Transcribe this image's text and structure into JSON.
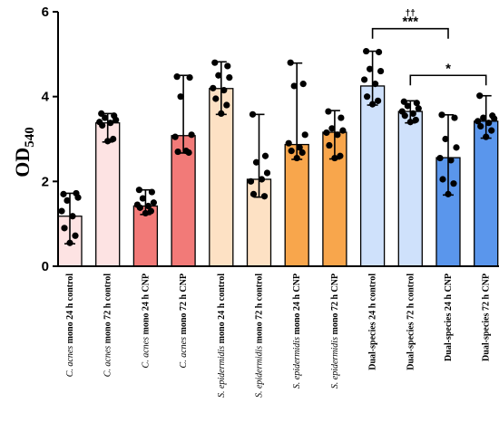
{
  "chart_data": {
    "type": "bar",
    "title": "",
    "xlabel": "",
    "ylabel": "OD",
    "ylabel_subscript": "540",
    "ylim": [
      0,
      6
    ],
    "yticks": [
      0,
      2,
      4,
      6
    ],
    "grid": false,
    "categories": [
      {
        "italic": "C. acnes",
        "rest": "mono 24 h control"
      },
      {
        "italic": "C. acnes",
        "rest": "mono 72  h control"
      },
      {
        "italic": "C. acnes",
        "rest": "mono 24 h CNP"
      },
      {
        "italic": "C. acnes",
        "rest": "mono 72  h CNP"
      },
      {
        "italic": "S. epidermidis",
        "rest": "mono 24 h control"
      },
      {
        "italic": "S. epidermidis",
        "rest": "mono 72 h control"
      },
      {
        "italic": "S. epidermidis",
        "rest": "mono 24 h CNP"
      },
      {
        "italic": "S. epidermidis",
        "rest": "mono 72 h CNP"
      },
      {
        "italic": "",
        "rest": "Dual-species 24 h control"
      },
      {
        "italic": "",
        "rest": "Dual-species 72 h control"
      },
      {
        "italic": "",
        "rest": "Dual-species 24 h CNP"
      },
      {
        "italic": "",
        "rest": "Dual-species 72 h CNP"
      }
    ],
    "values": [
      1.18,
      3.38,
      1.42,
      3.08,
      4.19,
      2.05,
      2.87,
      3.16,
      4.25,
      3.65,
      2.56,
      3.42
    ],
    "error_low": [
      0.53,
      2.93,
      1.22,
      2.67,
      3.58,
      1.63,
      2.52,
      2.53,
      3.8,
      3.38,
      1.68,
      3.02
    ],
    "error_high": [
      1.72,
      3.6,
      1.8,
      4.5,
      4.82,
      3.58,
      4.79,
      3.67,
      5.07,
      3.9,
      3.57,
      4.02
    ],
    "points": [
      [
        1.7,
        1.72,
        1.55,
        1.62,
        1.3,
        1.18,
        0.9,
        0.72,
        0.55
      ],
      [
        3.6,
        3.55,
        3.5,
        3.45,
        3.4,
        3.38,
        3.32,
        3.0,
        2.95
      ],
      [
        1.8,
        1.75,
        1.6,
        1.5,
        1.45,
        1.42,
        1.38,
        1.3,
        1.25
      ],
      [
        4.47,
        4.45,
        4.0,
        3.1,
        3.05,
        2.72,
        2.7,
        2.68
      ],
      [
        4.8,
        4.72,
        4.5,
        4.45,
        4.2,
        4.15,
        3.95,
        3.8,
        3.6
      ],
      [
        3.58,
        2.6,
        2.45,
        2.2,
        2.0,
        2.05,
        1.7,
        1.65
      ],
      [
        4.8,
        4.3,
        4.25,
        3.1,
        2.9,
        2.8,
        2.72,
        2.68,
        2.55
      ],
      [
        3.65,
        3.5,
        3.25,
        3.2,
        3.15,
        3.1,
        2.85,
        2.6,
        2.55
      ],
      [
        5.07,
        5.05,
        4.65,
        4.6,
        4.4,
        4.3,
        4.0,
        3.9,
        3.82
      ],
      [
        3.88,
        3.85,
        3.78,
        3.72,
        3.65,
        3.6,
        3.55,
        3.45,
        3.4
      ],
      [
        3.57,
        3.5,
        3.0,
        2.8,
        2.55,
        2.5,
        2.05,
        1.95,
        1.7
      ],
      [
        4.02,
        3.55,
        3.5,
        3.48,
        3.42,
        3.38,
        3.3,
        3.2,
        3.05
      ]
    ],
    "colors": {
      "fill": [
        "#fde3e3",
        "#fde3e3",
        "#f27a78",
        "#f27a78",
        "#fde1c4",
        "#fde1c4",
        "#f8a64c",
        "#f8a64c",
        "#cfe1fb",
        "#cfe1fb",
        "#5a96ec",
        "#5a96ec"
      ],
      "bar_stroke": "#000000",
      "point": "#000000"
    },
    "annotations": [
      {
        "from": 8,
        "to": 10,
        "y": 5.6,
        "labels": [
          "††",
          "***"
        ]
      },
      {
        "from": 9,
        "to": 11,
        "y": 4.5,
        "labels": [
          "*"
        ]
      }
    ]
  }
}
